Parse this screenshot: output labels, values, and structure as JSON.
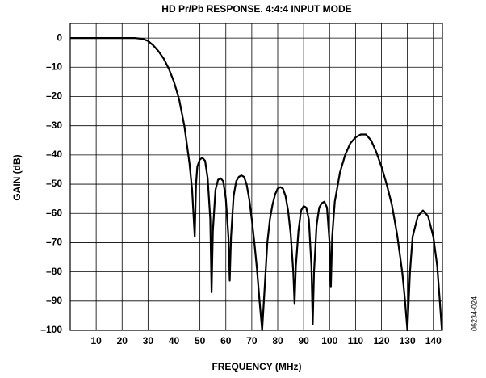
{
  "chart_data": {
    "type": "line",
    "title": "HD Pr/Pb RESPONSE. 4:4:4 INPUT MODE",
    "x_label": "FREQUENCY (MHz)",
    "y_label": "GAIN (dB)",
    "figure_id": "06234-024",
    "grid": true,
    "xlim": [
      0,
      143.5
    ],
    "ylim": [
      -100,
      5
    ],
    "xticks": [
      10,
      20,
      30,
      40,
      50,
      60,
      70,
      80,
      90,
      100,
      110,
      120,
      130,
      140
    ],
    "yticks": [
      0,
      {
        "value": -10,
        "label": "–10"
      },
      {
        "value": -20,
        "label": "–20"
      },
      {
        "value": -30,
        "label": "–30"
      },
      {
        "value": -40,
        "label": "–40"
      },
      {
        "value": -50,
        "label": "–50"
      },
      {
        "value": -60,
        "label": "–60"
      },
      {
        "value": -70,
        "label": "–70"
      },
      {
        "value": -80,
        "label": "–80"
      },
      {
        "value": -90,
        "label": "–90"
      },
      {
        "value": -100,
        "label": "–100"
      }
    ],
    "series": [
      {
        "color": "#000000",
        "x": [
          0,
          10,
          20,
          25,
          28,
          30,
          32,
          34,
          36,
          38,
          40,
          42,
          44,
          46,
          47,
          48,
          48.5,
          49,
          50,
          51,
          52,
          53,
          54,
          54.5,
          55,
          56,
          57,
          58,
          59,
          60,
          61,
          61.5,
          62,
          63,
          64,
          65,
          66,
          67,
          68,
          69,
          70,
          71,
          72,
          73,
          74,
          75,
          76,
          77,
          78,
          79,
          80,
          81,
          82,
          83,
          84,
          85,
          86,
          86.5,
          87,
          88,
          89,
          90,
          91,
          92,
          93,
          93.5,
          94,
          95,
          96,
          97,
          98,
          99,
          100,
          100.5,
          101,
          102,
          104,
          106,
          108,
          110,
          112,
          114,
          116,
          118,
          120,
          122,
          124,
          126,
          128,
          129,
          130,
          131,
          132,
          134,
          136,
          138,
          140,
          141.5,
          142.5,
          143.3
        ],
        "values": [
          0,
          0,
          0,
          0,
          -0.3,
          -1,
          -2.5,
          -4.5,
          -7,
          -10.5,
          -15,
          -21,
          -30,
          -43,
          -52,
          -68,
          -50,
          -44,
          -41.5,
          -41,
          -42,
          -48,
          -62,
          -87,
          -66,
          -52,
          -48.5,
          -48,
          -49,
          -55,
          -68,
          -83,
          -68,
          -54,
          -49,
          -47.5,
          -47,
          -47.5,
          -50,
          -55,
          -62,
          -70,
          -79,
          -90,
          -100,
          -85,
          -70,
          -62,
          -57,
          -53.5,
          -51.5,
          -51,
          -51.5,
          -54,
          -59,
          -67,
          -80,
          -91,
          -78,
          -66,
          -59,
          -57.5,
          -58,
          -62,
          -78,
          -98,
          -80,
          -64,
          -58,
          -56.5,
          -56,
          -58,
          -70,
          -85,
          -68,
          -56,
          -46,
          -40,
          -36,
          -34,
          -33,
          -33,
          -35,
          -39,
          -44,
          -50,
          -57,
          -67,
          -80,
          -89,
          -100,
          -80,
          -68,
          -61,
          -59,
          -61,
          -68,
          -78,
          -90,
          -100
        ]
      }
    ]
  }
}
